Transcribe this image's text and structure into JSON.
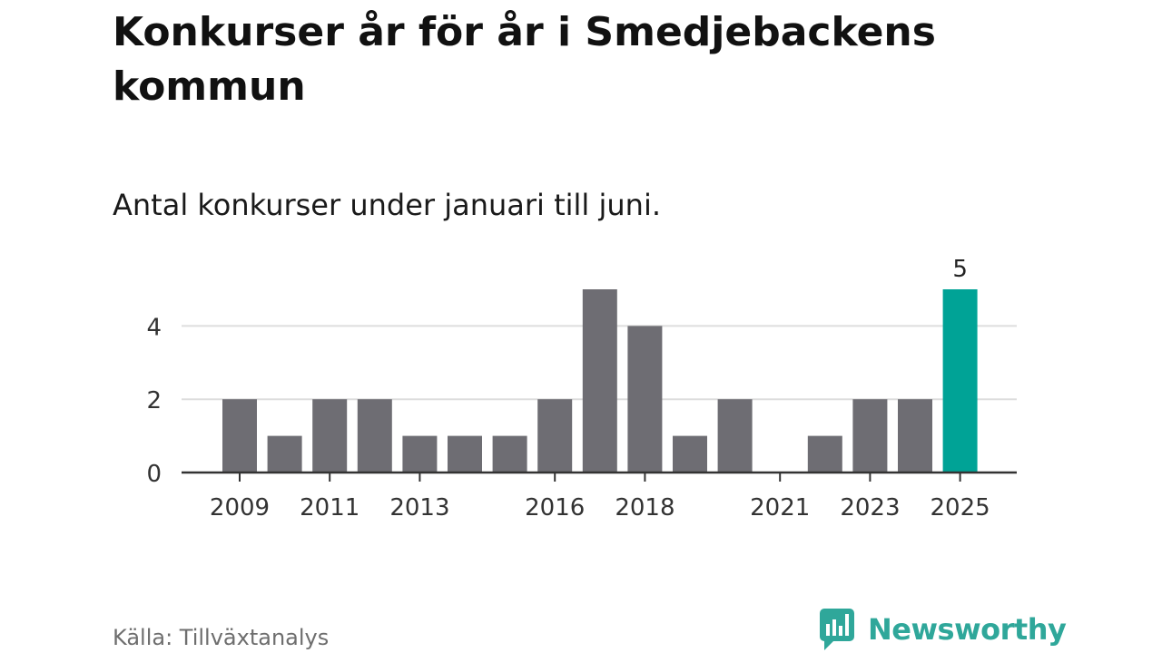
{
  "header": {
    "title": "Konkurser år för år i Smedjebackens kommun",
    "subtitle": "Antal konkurser under januari till juni."
  },
  "footer": {
    "source": "Källa: Tillväxtanalys",
    "brand": "Newsworthy"
  },
  "colors": {
    "bar": "#6e6d73",
    "highlight": "#00a396",
    "grid": "#dddddd",
    "axis": "#333333",
    "brand": "#2fa79a"
  },
  "chart_data": {
    "type": "bar",
    "categories": [
      "2009",
      "2010",
      "2011",
      "2012",
      "2013",
      "2014",
      "2015",
      "2016",
      "2017",
      "2018",
      "2019",
      "2020",
      "2021",
      "2022",
      "2023",
      "2024",
      "2025"
    ],
    "values": [
      2,
      1,
      2,
      2,
      1,
      1,
      1,
      2,
      5,
      4,
      1,
      2,
      0,
      1,
      2,
      2,
      5
    ],
    "x_tick_labels": [
      "2009",
      "2011",
      "2013",
      "2016",
      "2018",
      "2021",
      "2023",
      "2025"
    ],
    "y_ticks": [
      0,
      2,
      4
    ],
    "ylim": [
      0,
      5
    ],
    "highlight_category": "2025",
    "data_labels": [
      {
        "category": "2025",
        "text": "5"
      }
    ],
    "grid": true,
    "title": "Konkurser år för år i Smedjebackens kommun",
    "subtitle": "Antal konkurser under januari till juni.",
    "xlabel": "",
    "ylabel": ""
  }
}
